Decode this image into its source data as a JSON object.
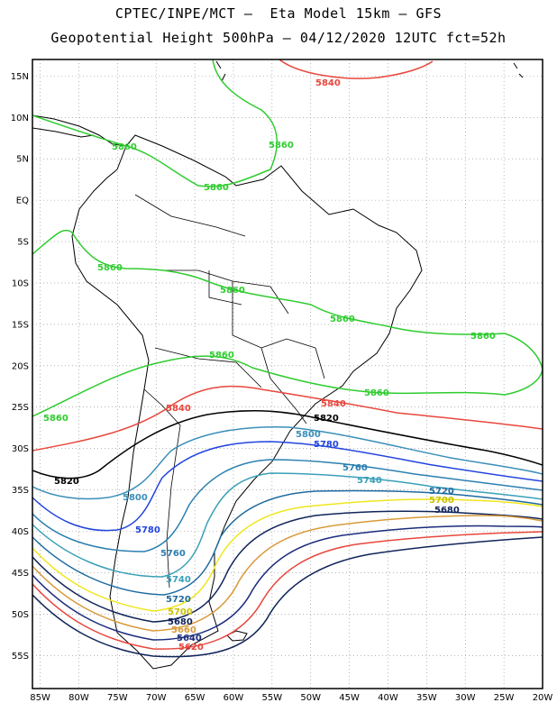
{
  "title": {
    "line1": "CPTEC/INPE/MCT –  Eta Model 15km – GFS",
    "line2": "Geopotential Height 500hPa – 04/12/2020 12UTC fct=52h"
  },
  "map": {
    "lon_range": [
      -86,
      -20
    ],
    "lat_range": [
      -59,
      17
    ],
    "lon_ticks": [
      "85W",
      "80W",
      "75W",
      "70W",
      "65W",
      "60W",
      "55W",
      "50W",
      "45W",
      "40W",
      "35W",
      "30W",
      "25W",
      "20W"
    ],
    "lat_ticks": [
      "15N",
      "10N",
      "5N",
      "EQ",
      "5S",
      "10S",
      "15S",
      "20S",
      "25S",
      "30S",
      "35S",
      "40S",
      "45S",
      "50S",
      "55S"
    ],
    "grid": "dotted"
  },
  "contours": [
    {
      "value": "5840",
      "color": "#e8463c"
    },
    {
      "value": "5860",
      "color": "#2fcc2f"
    },
    {
      "value": "5820",
      "color": "#000000"
    },
    {
      "value": "5800",
      "color": "#3a8fb8"
    },
    {
      "value": "5780",
      "color": "#2244dd"
    },
    {
      "value": "5760",
      "color": "#2a7fb0"
    },
    {
      "value": "5740",
      "color": "#3aa0b8"
    },
    {
      "value": "5720",
      "color": "#1e6aa0"
    },
    {
      "value": "5700",
      "color": "#f0e61e"
    },
    {
      "value": "5680",
      "color": "#10245a"
    },
    {
      "value": "5660",
      "color": "#d89a3a"
    },
    {
      "value": "5640",
      "color": "#1a2a7a"
    },
    {
      "value": "5620",
      "color": "#e8463c"
    }
  ]
}
